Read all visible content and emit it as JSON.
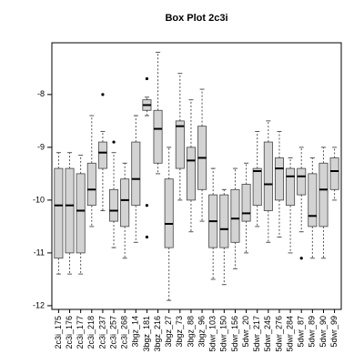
{
  "chart_data": {
    "type": "box",
    "title": "Box Plot 2c3i",
    "categories": [
      "2c3i_175",
      "2c3i_176",
      "2c3i_177",
      "2c3i_218",
      "2c3i_237",
      "2c3i_257",
      "2c3i_268",
      "3bgz_14",
      "3bgz_181",
      "3bgz_216",
      "3bgz_27",
      "3bgz_73",
      "3bgz_88",
      "3bgz_96",
      "5dwr_103",
      "5dwr_150",
      "5dwr_156",
      "5dwr_20",
      "5dwr_217",
      "5dwr_245",
      "5dwr_276",
      "5dwr_284",
      "5dwr_87",
      "5dwr_89",
      "5dwr_90",
      "5dwr_99"
    ],
    "boxes": [
      {
        "min": -11.4,
        "q1": -11.1,
        "median": -10.1,
        "q3": -9.4,
        "max": -9.1,
        "outliers": []
      },
      {
        "min": -11.4,
        "q1": -11.0,
        "median": -10.1,
        "q3": -9.4,
        "max": -9.1,
        "outliers": []
      },
      {
        "min": -11.4,
        "q1": -11.0,
        "median": -10.2,
        "q3": -9.5,
        "max": -9.15,
        "outliers": []
      },
      {
        "min": -10.5,
        "q1": -10.1,
        "median": -9.8,
        "q3": -9.3,
        "max": -8.4,
        "outliers": []
      },
      {
        "min": -10.2,
        "q1": -9.4,
        "median": -9.1,
        "q3": -8.9,
        "max": -8.7,
        "outliers": [
          -8.0
        ]
      },
      {
        "min": -10.9,
        "q1": -10.4,
        "median": -10.2,
        "q3": -9.8,
        "max": -9.1,
        "outliers": [
          -8.9
        ]
      },
      {
        "min": -11.1,
        "q1": -10.5,
        "median": -10.0,
        "q3": -9.6,
        "max": -9.3,
        "outliers": []
      },
      {
        "min": -10.8,
        "q1": -10.1,
        "median": -9.6,
        "q3": -8.9,
        "max": -8.4,
        "outliers": []
      },
      {
        "min": -8.4,
        "q1": -8.3,
        "median": -8.2,
        "q3": -8.1,
        "max": -8.05,
        "outliers": [
          -7.7,
          -10.1,
          -10.7
        ]
      },
      {
        "min": -9.5,
        "q1": -9.3,
        "median": -8.65,
        "q3": -8.3,
        "max": -7.2,
        "outliers": []
      },
      {
        "min": -11.9,
        "q1": -10.9,
        "median": -10.45,
        "q3": -9.6,
        "max": -9.0,
        "outliers": []
      },
      {
        "min": -10.0,
        "q1": -9.4,
        "median": -8.6,
        "q3": -8.5,
        "max": -7.6,
        "outliers": []
      },
      {
        "min": -10.6,
        "q1": -10.0,
        "median": -9.25,
        "q3": -9.0,
        "max": -8.1,
        "outliers": []
      },
      {
        "min": -10.4,
        "q1": -9.8,
        "median": -9.2,
        "q3": -8.6,
        "max": -7.9,
        "outliers": []
      },
      {
        "min": -11.5,
        "q1": -10.9,
        "median": -10.4,
        "q3": -9.9,
        "max": -9.4,
        "outliers": []
      },
      {
        "min": -11.6,
        "q1": -10.9,
        "median": -10.55,
        "q3": -9.9,
        "max": -9.8,
        "outliers": []
      },
      {
        "min": -11.3,
        "q1": -10.8,
        "median": -10.35,
        "q3": -9.8,
        "max": -9.4,
        "outliers": []
      },
      {
        "min": -11.0,
        "q1": -10.4,
        "median": -10.25,
        "q3": -9.7,
        "max": -9.3,
        "outliers": []
      },
      {
        "min": -10.5,
        "q1": -10.1,
        "median": -9.45,
        "q3": -9.4,
        "max": -8.7,
        "outliers": []
      },
      {
        "min": -10.8,
        "q1": -10.2,
        "median": -9.7,
        "q3": -8.9,
        "max": -8.5,
        "outliers": []
      },
      {
        "min": -10.7,
        "q1": -10.0,
        "median": -9.4,
        "q3": -9.2,
        "max": -8.7,
        "outliers": []
      },
      {
        "min": -11.0,
        "q1": -10.1,
        "median": -9.55,
        "q3": -9.4,
        "max": -9.2,
        "outliers": []
      },
      {
        "min": -10.6,
        "q1": -9.9,
        "median": -9.55,
        "q3": -9.4,
        "max": -9.0,
        "outliers": [
          -11.1
        ]
      },
      {
        "min": -11.1,
        "q1": -10.5,
        "median": -10.3,
        "q3": -9.5,
        "max": -9.2,
        "outliers": []
      },
      {
        "min": -11.1,
        "q1": -10.5,
        "median": -9.8,
        "q3": -9.3,
        "max": -9.0,
        "outliers": []
      },
      {
        "min": -10.0,
        "q1": -9.8,
        "median": -9.45,
        "q3": -9.2,
        "max": -9.0,
        "outliers": []
      }
    ],
    "color": "#d3d3d3",
    "ylim": [
      -12.07,
      -7.02
    ],
    "yticks": [
      -12,
      -11,
      -10,
      -9,
      -8
    ]
  }
}
